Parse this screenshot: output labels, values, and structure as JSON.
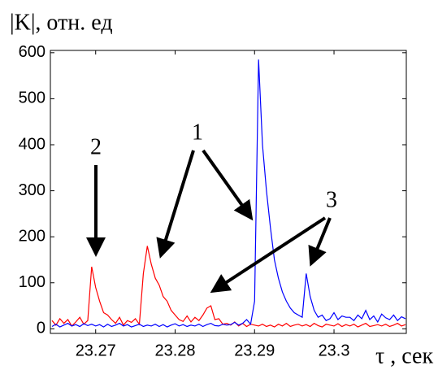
{
  "chart_data": {
    "type": "line",
    "y_label": "|K|, отн. ед",
    "x_label": "τ , сек",
    "annotations": [
      "1",
      "2",
      "3"
    ],
    "x": [
      23.2645,
      23.265,
      23.2655,
      23.266,
      23.2665,
      23.267,
      23.2675,
      23.268,
      23.2685,
      23.269,
      23.2695,
      23.27,
      23.2705,
      23.271,
      23.2715,
      23.272,
      23.2725,
      23.273,
      23.2735,
      23.274,
      23.2745,
      23.275,
      23.2755,
      23.276,
      23.2765,
      23.277,
      23.2775,
      23.278,
      23.2785,
      23.279,
      23.2795,
      23.28,
      23.2805,
      23.281,
      23.2815,
      23.282,
      23.2825,
      23.283,
      23.2835,
      23.284,
      23.2845,
      23.285,
      23.2855,
      23.286,
      23.2865,
      23.287,
      23.2875,
      23.288,
      23.2885,
      23.289,
      23.2895,
      23.29,
      23.2905,
      23.291,
      23.2915,
      23.292,
      23.2925,
      23.293,
      23.2935,
      23.294,
      23.2945,
      23.295,
      23.2955,
      23.296,
      23.2965,
      23.297,
      23.2975,
      23.298,
      23.2985,
      23.299,
      23.2995,
      23.3,
      23.3005,
      23.301,
      23.3015,
      23.302,
      23.3025,
      23.303,
      23.3035,
      23.304,
      23.3045,
      23.305,
      23.3055,
      23.306,
      23.3065,
      23.307,
      23.3075,
      23.308,
      23.3085,
      23.309
    ],
    "series": [
      {
        "name": "red",
        "color": "#ff0000",
        "values": [
          18,
          8,
          22,
          12,
          20,
          6,
          15,
          25,
          10,
          18,
          135,
          90,
          60,
          35,
          30,
          20,
          12,
          25,
          8,
          18,
          14,
          22,
          10,
          120,
          180,
          140,
          110,
          95,
          70,
          60,
          40,
          30,
          20,
          16,
          28,
          15,
          25,
          18,
          30,
          45,
          50,
          20,
          22,
          10,
          12,
          8,
          15,
          6,
          12,
          5,
          10,
          8,
          6,
          10,
          5,
          8,
          4,
          10,
          6,
          12,
          5,
          8,
          10,
          6,
          9,
          5,
          12,
          7,
          4,
          10,
          8,
          6,
          11,
          5,
          9,
          6,
          10,
          4,
          8,
          12,
          5,
          7,
          9,
          6,
          10,
          5,
          8,
          12,
          6,
          9
        ]
      },
      {
        "name": "blue",
        "color": "#0000ff",
        "values": [
          5,
          10,
          4,
          8,
          12,
          6,
          9,
          5,
          11,
          7,
          10,
          6,
          9,
          4,
          10,
          5,
          8,
          12,
          6,
          9,
          4,
          7,
          10,
          5,
          8,
          6,
          10,
          5,
          9,
          4,
          8,
          11,
          6,
          9,
          5,
          8,
          6,
          10,
          5,
          9,
          12,
          7,
          6,
          10,
          8,
          9,
          14,
          8,
          12,
          20,
          10,
          60,
          585,
          400,
          300,
          220,
          150,
          110,
          80,
          60,
          45,
          35,
          30,
          25,
          120,
          70,
          40,
          25,
          30,
          18,
          22,
          35,
          20,
          28,
          25,
          25,
          18,
          30,
          22,
          40,
          20,
          28,
          15,
          32,
          24,
          20,
          30,
          18,
          26,
          22
        ]
      }
    ],
    "xlim": [
      23.2643,
      23.3091
    ],
    "ylim": [
      -10,
      605
    ],
    "xticks": [
      23.27,
      23.28,
      23.29,
      23.3
    ],
    "yticks": [
      0,
      100,
      200,
      300,
      400,
      500,
      600
    ],
    "grid": false
  }
}
